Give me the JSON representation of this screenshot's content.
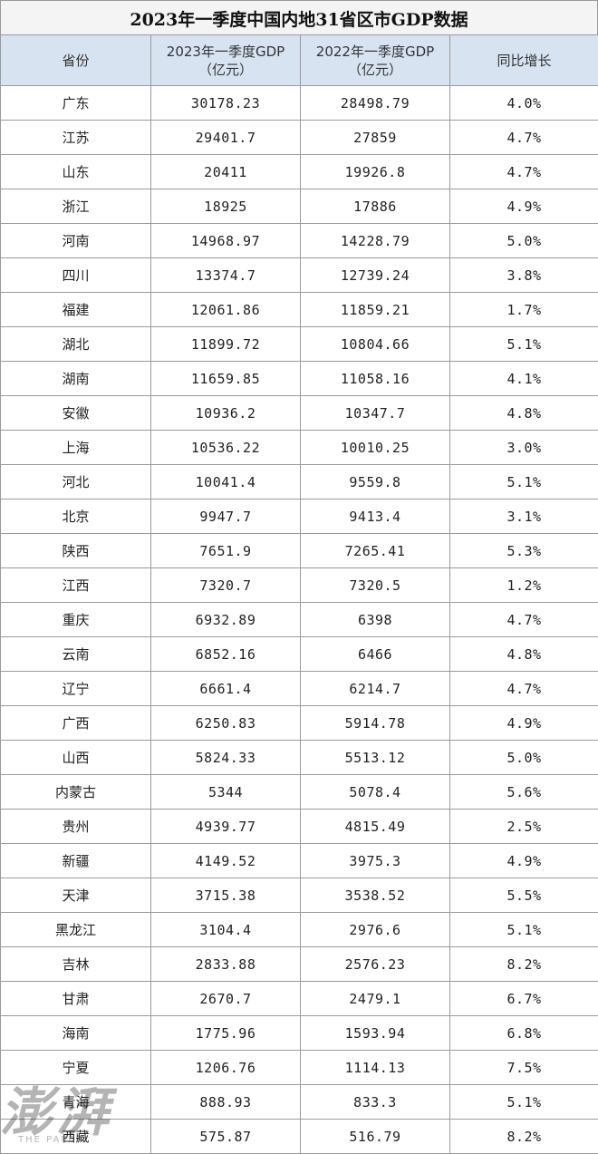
{
  "title": "2023年一季度中国内地31省区市GDP数据",
  "columns": [
    "省份",
    "2023年一季度GDP\n（亿元）",
    "2022年一季度GDP\n（亿元）",
    "同比增长"
  ],
  "columns_lines": [
    [
      "省份"
    ],
    [
      "2023年一季度GDP",
      "（亿元）"
    ],
    [
      "2022年一季度GDP",
      "（亿元）"
    ],
    [
      "同比增长"
    ]
  ],
  "rows": [
    [
      "广东",
      "30178.23",
      "28498.79",
      "4.0%"
    ],
    [
      "江苏",
      "29401.7",
      "27859",
      "4.7%"
    ],
    [
      "山东",
      "20411",
      "19926.8",
      "4.7%"
    ],
    [
      "浙江",
      "18925",
      "17886",
      "4.9%"
    ],
    [
      "河南",
      "14968.97",
      "14228.79",
      "5.0%"
    ],
    [
      "四川",
      "13374.7",
      "12739.24",
      "3.8%"
    ],
    [
      "福建",
      "12061.86",
      "11859.21",
      "1.7%"
    ],
    [
      "湖北",
      "11899.72",
      "10804.66",
      "5.1%"
    ],
    [
      "湖南",
      "11659.85",
      "11058.16",
      "4.1%"
    ],
    [
      "安徽",
      "10936.2",
      "10347.7",
      "4.8%"
    ],
    [
      "上海",
      "10536.22",
      "10010.25",
      "3.0%"
    ],
    [
      "河北",
      "10041.4",
      "9559.8",
      "5.1%"
    ],
    [
      "北京",
      "9947.7",
      "9413.4",
      "3.1%"
    ],
    [
      "陕西",
      "7651.9",
      "7265.41",
      "5.3%"
    ],
    [
      "江西",
      "7320.7",
      "7320.5",
      "1.2%"
    ],
    [
      "重庆",
      "6932.89",
      "6398",
      "4.7%"
    ],
    [
      "云南",
      "6852.16",
      "6466",
      "4.8%"
    ],
    [
      "辽宁",
      "6661.4",
      "6214.7",
      "4.7%"
    ],
    [
      "广西",
      "6250.83",
      "5914.78",
      "4.9%"
    ],
    [
      "山西",
      "5824.33",
      "5513.12",
      "5.0%"
    ],
    [
      "内蒙古",
      "5344",
      "5078.4",
      "5.6%"
    ],
    [
      "贵州",
      "4939.77",
      "4815.49",
      "2.5%"
    ],
    [
      "新疆",
      "4149.52",
      "3975.3",
      "4.9%"
    ],
    [
      "天津",
      "3715.38",
      "3538.52",
      "5.5%"
    ],
    [
      "黑龙江",
      "3104.4",
      "2976.6",
      "5.1%"
    ],
    [
      "吉林",
      "2833.88",
      "2576.23",
      "8.2%"
    ],
    [
      "甘肃",
      "2670.7",
      "2479.1",
      "6.7%"
    ],
    [
      "海南",
      "1775.96",
      "1593.94",
      "6.8%"
    ],
    [
      "宁夏",
      "1206.76",
      "1114.13",
      "7.5%"
    ],
    [
      "青海",
      "888.93",
      "833.3",
      "5.1%"
    ],
    [
      "西藏",
      "575.87",
      "516.79",
      "8.2%"
    ]
  ],
  "watermark": {
    "logo": "澎湃",
    "subtitle": "THE PAPER"
  },
  "colors": {
    "header_bg": "#d7e3f1",
    "title_bg": "#f4f4f4",
    "border": "#9a9a9a"
  }
}
